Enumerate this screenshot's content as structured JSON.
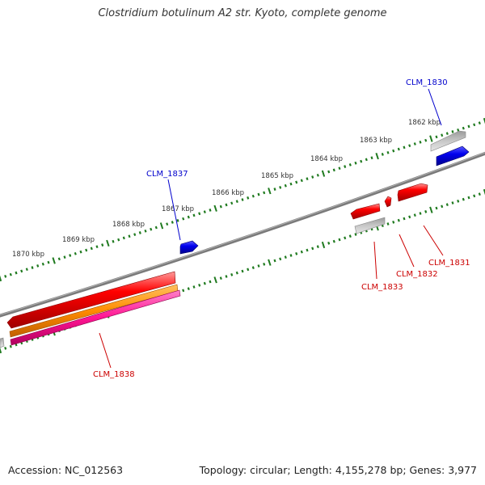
{
  "title": "Clostridium botulinum A2 str. Kyoto, complete genome",
  "accession_text": "Accession: NC_012563",
  "summary_text": "Topology: circular; Length: 4,155,278 bp; Genes: 3,977",
  "colors": {
    "backbone": "#808080",
    "tick": "#1f7a1f",
    "gene_red": "#ff0000",
    "gene_grey": "#b0b0b0",
    "gene_blue": "#0000ee",
    "gene_orange": "#ff8c00",
    "gene_pink": "#ff1493",
    "label_blue": "#0000cc",
    "label_red": "#cc0000"
  },
  "scale_labels": [
    {
      "id": "1862",
      "text": "1862 kbp"
    },
    {
      "id": "1863",
      "text": "1863 kbp"
    },
    {
      "id": "1864",
      "text": "1864 kbp"
    },
    {
      "id": "1865",
      "text": "1865 kbp"
    },
    {
      "id": "1866",
      "text": "1866 kbp"
    },
    {
      "id": "1867",
      "text": "1867 kbp"
    },
    {
      "id": "1868",
      "text": "1868 kbp"
    },
    {
      "id": "1869",
      "text": "1869 kbp"
    },
    {
      "id": "1870",
      "text": "1870 kbp"
    }
  ],
  "gene_labels": {
    "clm_1830": "CLM_1830",
    "clm_1837": "CLM_1837",
    "clm_1831": "CLM_1831",
    "clm_1832": "CLM_1832",
    "clm_1833": "CLM_1833",
    "clm_1838": "CLM_1838"
  }
}
